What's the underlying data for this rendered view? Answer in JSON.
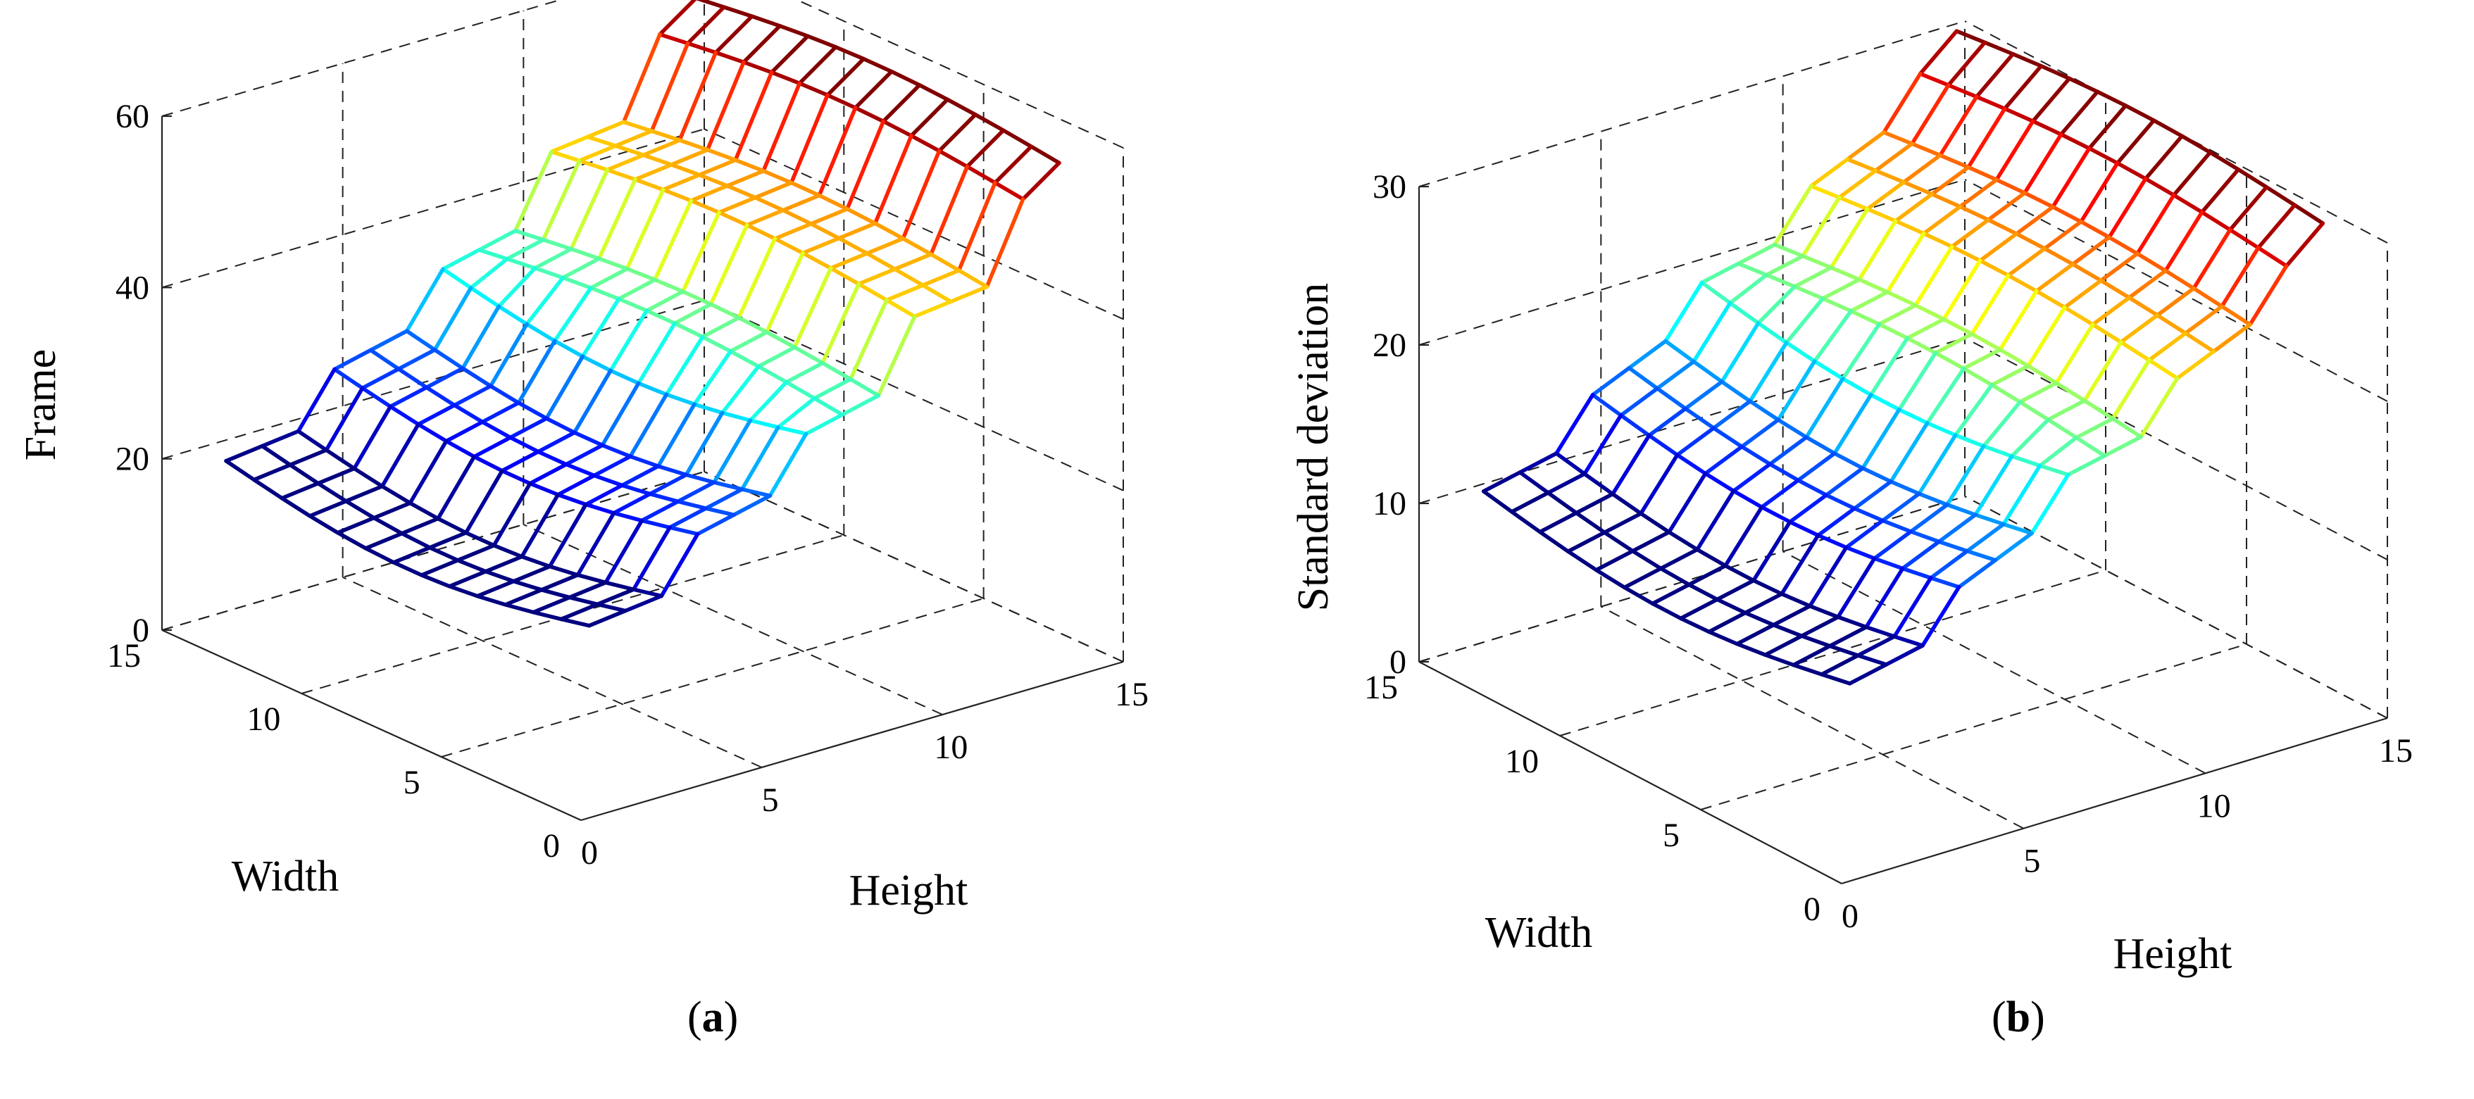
{
  "chart_data": [
    {
      "type": "surface3d",
      "panel": "a",
      "panel_label": "a",
      "zlabel": "Frame",
      "xlabel": "Width",
      "ylabel": "Height",
      "xlim": [
        0,
        15
      ],
      "ylim": [
        0,
        15
      ],
      "zlim": [
        0,
        60
      ],
      "xticks": [
        0,
        5,
        10,
        15
      ],
      "yticks": [
        0,
        5,
        10,
        15
      ],
      "zticks": [
        0,
        20,
        40,
        60
      ],
      "grid": true,
      "colormap": "jet",
      "grid_range": [
        1,
        14
      ],
      "surface": {
        "description": "z(height) step profile, nearly constant across width",
        "height_samples": [
          1,
          3,
          4,
          6,
          7,
          9,
          10,
          12,
          13,
          14
        ],
        "z_values": [
          20,
          21,
          27,
          29,
          35,
          37,
          45,
          46,
          55,
          58
        ],
        "width_variation": 3
      }
    },
    {
      "type": "surface3d",
      "panel": "b",
      "panel_label": "b",
      "zlabel": "Standard deviation",
      "xlabel": "Width",
      "ylabel": "Height",
      "xlim": [
        0,
        15
      ],
      "ylim": [
        0,
        15
      ],
      "zlim": [
        0,
        30
      ],
      "xticks": [
        0,
        5,
        10,
        15
      ],
      "yticks": [
        0,
        5,
        10,
        15
      ],
      "zticks": [
        0,
        10,
        20,
        30
      ],
      "grid": true,
      "colormap": "jet",
      "grid_range": [
        1,
        14
      ],
      "surface": {
        "description": "z(height) step profile, nearly constant across width",
        "height_samples": [
          1,
          3,
          4,
          6,
          7,
          9,
          10,
          12,
          13,
          14
        ],
        "z_values": [
          11,
          12,
          15,
          17,
          20,
          21,
          24,
          26,
          29,
          31
        ],
        "width_variation": 1.5
      }
    }
  ],
  "captions": {
    "a": "a",
    "b": "b"
  }
}
